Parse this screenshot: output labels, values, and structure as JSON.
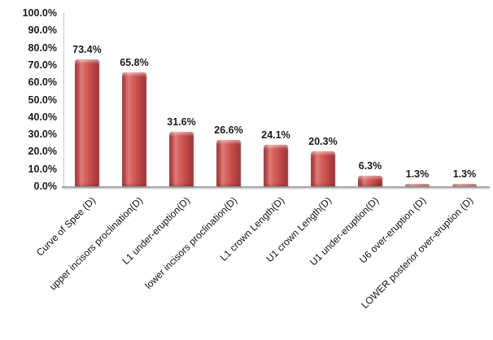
{
  "chart_data": {
    "type": "bar",
    "title": "",
    "xlabel": "",
    "ylabel": "",
    "categories": [
      "Curve of Spee (D)",
      "upper incisors proclination(D)",
      "L1 under-eruption(D)",
      "lower incisors proclination(D)",
      "L1 crown Length(D)",
      "U1 crown Length(D)",
      "U1 under-eruption(D)",
      "U6 over-eruption (D)",
      "LOWER posterior over-eruption (D)"
    ],
    "values": [
      73.4,
      65.8,
      31.6,
      26.6,
      24.1,
      20.3,
      6.3,
      1.3,
      1.3
    ],
    "value_labels": [
      "73.4%",
      "65.8%",
      "31.6%",
      "26.6%",
      "24.1%",
      "20.3%",
      "6.3%",
      "1.3%",
      "1.3%"
    ],
    "y_tick_labels": [
      "0.0%",
      "10.0%",
      "20.0%",
      "30.0%",
      "40.0%",
      "50.0%",
      "60.0%",
      "70.0%",
      "80.0%",
      "90.0%",
      "100.0%"
    ],
    "y_tick_values": [
      0,
      10,
      20,
      30,
      40,
      50,
      60,
      70,
      80,
      90,
      100
    ],
    "ylim": [
      0,
      100
    ],
    "grid": "off",
    "legend": "none",
    "category_label_rotation_deg": -45,
    "colors": {
      "bar_main": "#c34946",
      "bar_highlight": "#e07b76",
      "bar_edge": "#8e2b2d",
      "text": "#1a1a1a",
      "axis_line": "#a8a8a8",
      "value_axis_line": "#c6c6c6",
      "background": "#ffffff"
    }
  }
}
